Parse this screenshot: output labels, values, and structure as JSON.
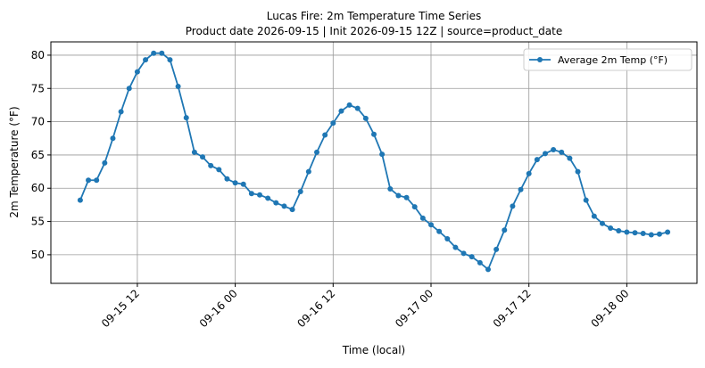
{
  "chart_data": {
    "type": "line",
    "title": "Lucas Fire: 2m Temperature Time Series",
    "subtitle": "Product date 2026-09-15 | Init 2026-09-15 12Z | source=product_date",
    "x_label": "Time (local)",
    "y_label": "2m Temperature (°F)",
    "x": [
      "09-15 05",
      "09-15 06",
      "09-15 07",
      "09-15 08",
      "09-15 09",
      "09-15 10",
      "09-15 11",
      "09-15 12",
      "09-15 13",
      "09-15 14",
      "09-15 15",
      "09-15 16",
      "09-15 17",
      "09-15 18",
      "09-15 19",
      "09-15 20",
      "09-15 21",
      "09-15 22",
      "09-15 23",
      "09-16 00",
      "09-16 01",
      "09-16 02",
      "09-16 03",
      "09-16 04",
      "09-16 05",
      "09-16 06",
      "09-16 07",
      "09-16 08",
      "09-16 09",
      "09-16 10",
      "09-16 11",
      "09-16 12",
      "09-16 13",
      "09-16 14",
      "09-16 15",
      "09-16 16",
      "09-16 17",
      "09-16 18",
      "09-16 19",
      "09-16 20",
      "09-16 21",
      "09-16 22",
      "09-16 23",
      "09-17 00",
      "09-17 01",
      "09-17 02",
      "09-17 03",
      "09-17 04",
      "09-17 05",
      "09-17 06",
      "09-17 07",
      "09-17 08",
      "09-17 09",
      "09-17 10",
      "09-17 11",
      "09-17 12",
      "09-17 13",
      "09-17 14",
      "09-17 15",
      "09-17 16",
      "09-17 17",
      "09-17 18",
      "09-17 19",
      "09-17 20",
      "09-17 21",
      "09-17 22",
      "09-17 23",
      "09-18 00",
      "09-18 01",
      "09-18 02",
      "09-18 03",
      "09-18 04",
      "09-18 05"
    ],
    "series": [
      {
        "name": "Average 2m Temp (°F)",
        "color": "#1f77b4",
        "values": [
          58.2,
          61.2,
          61.2,
          63.8,
          67.5,
          71.5,
          75.0,
          77.5,
          79.3,
          80.3,
          80.3,
          79.3,
          75.3,
          70.6,
          65.4,
          64.7,
          63.4,
          62.8,
          61.4,
          60.8,
          60.6,
          59.2,
          59.0,
          58.5,
          57.8,
          57.3,
          56.8,
          59.5,
          62.5,
          65.4,
          68.0,
          69.8,
          71.6,
          72.5,
          72.0,
          70.5,
          68.1,
          65.1,
          59.9,
          58.9,
          58.6,
          57.2,
          55.5,
          54.5,
          53.5,
          52.4,
          51.1,
          50.2,
          49.7,
          48.8,
          47.8,
          50.8,
          53.7,
          57.3,
          59.8,
          62.2,
          64.3,
          65.2,
          65.8,
          65.4,
          64.5,
          62.5,
          58.2,
          55.8,
          54.7,
          54.0,
          53.6,
          53.4,
          53.3,
          53.2,
          53.0,
          53.1,
          53.4
        ]
      }
    ],
    "xlim": [
      "09-15 01:24",
      "09-18 08:36"
    ],
    "xticks": [
      "09-15 12",
      "09-16 00",
      "09-16 12",
      "09-17 00",
      "09-17 12",
      "09-18 00"
    ],
    "ylim": [
      45.7,
      82.0
    ],
    "yticks": [
      50,
      55,
      60,
      65,
      70,
      75,
      80
    ],
    "grid": true,
    "legend": "upper right"
  }
}
